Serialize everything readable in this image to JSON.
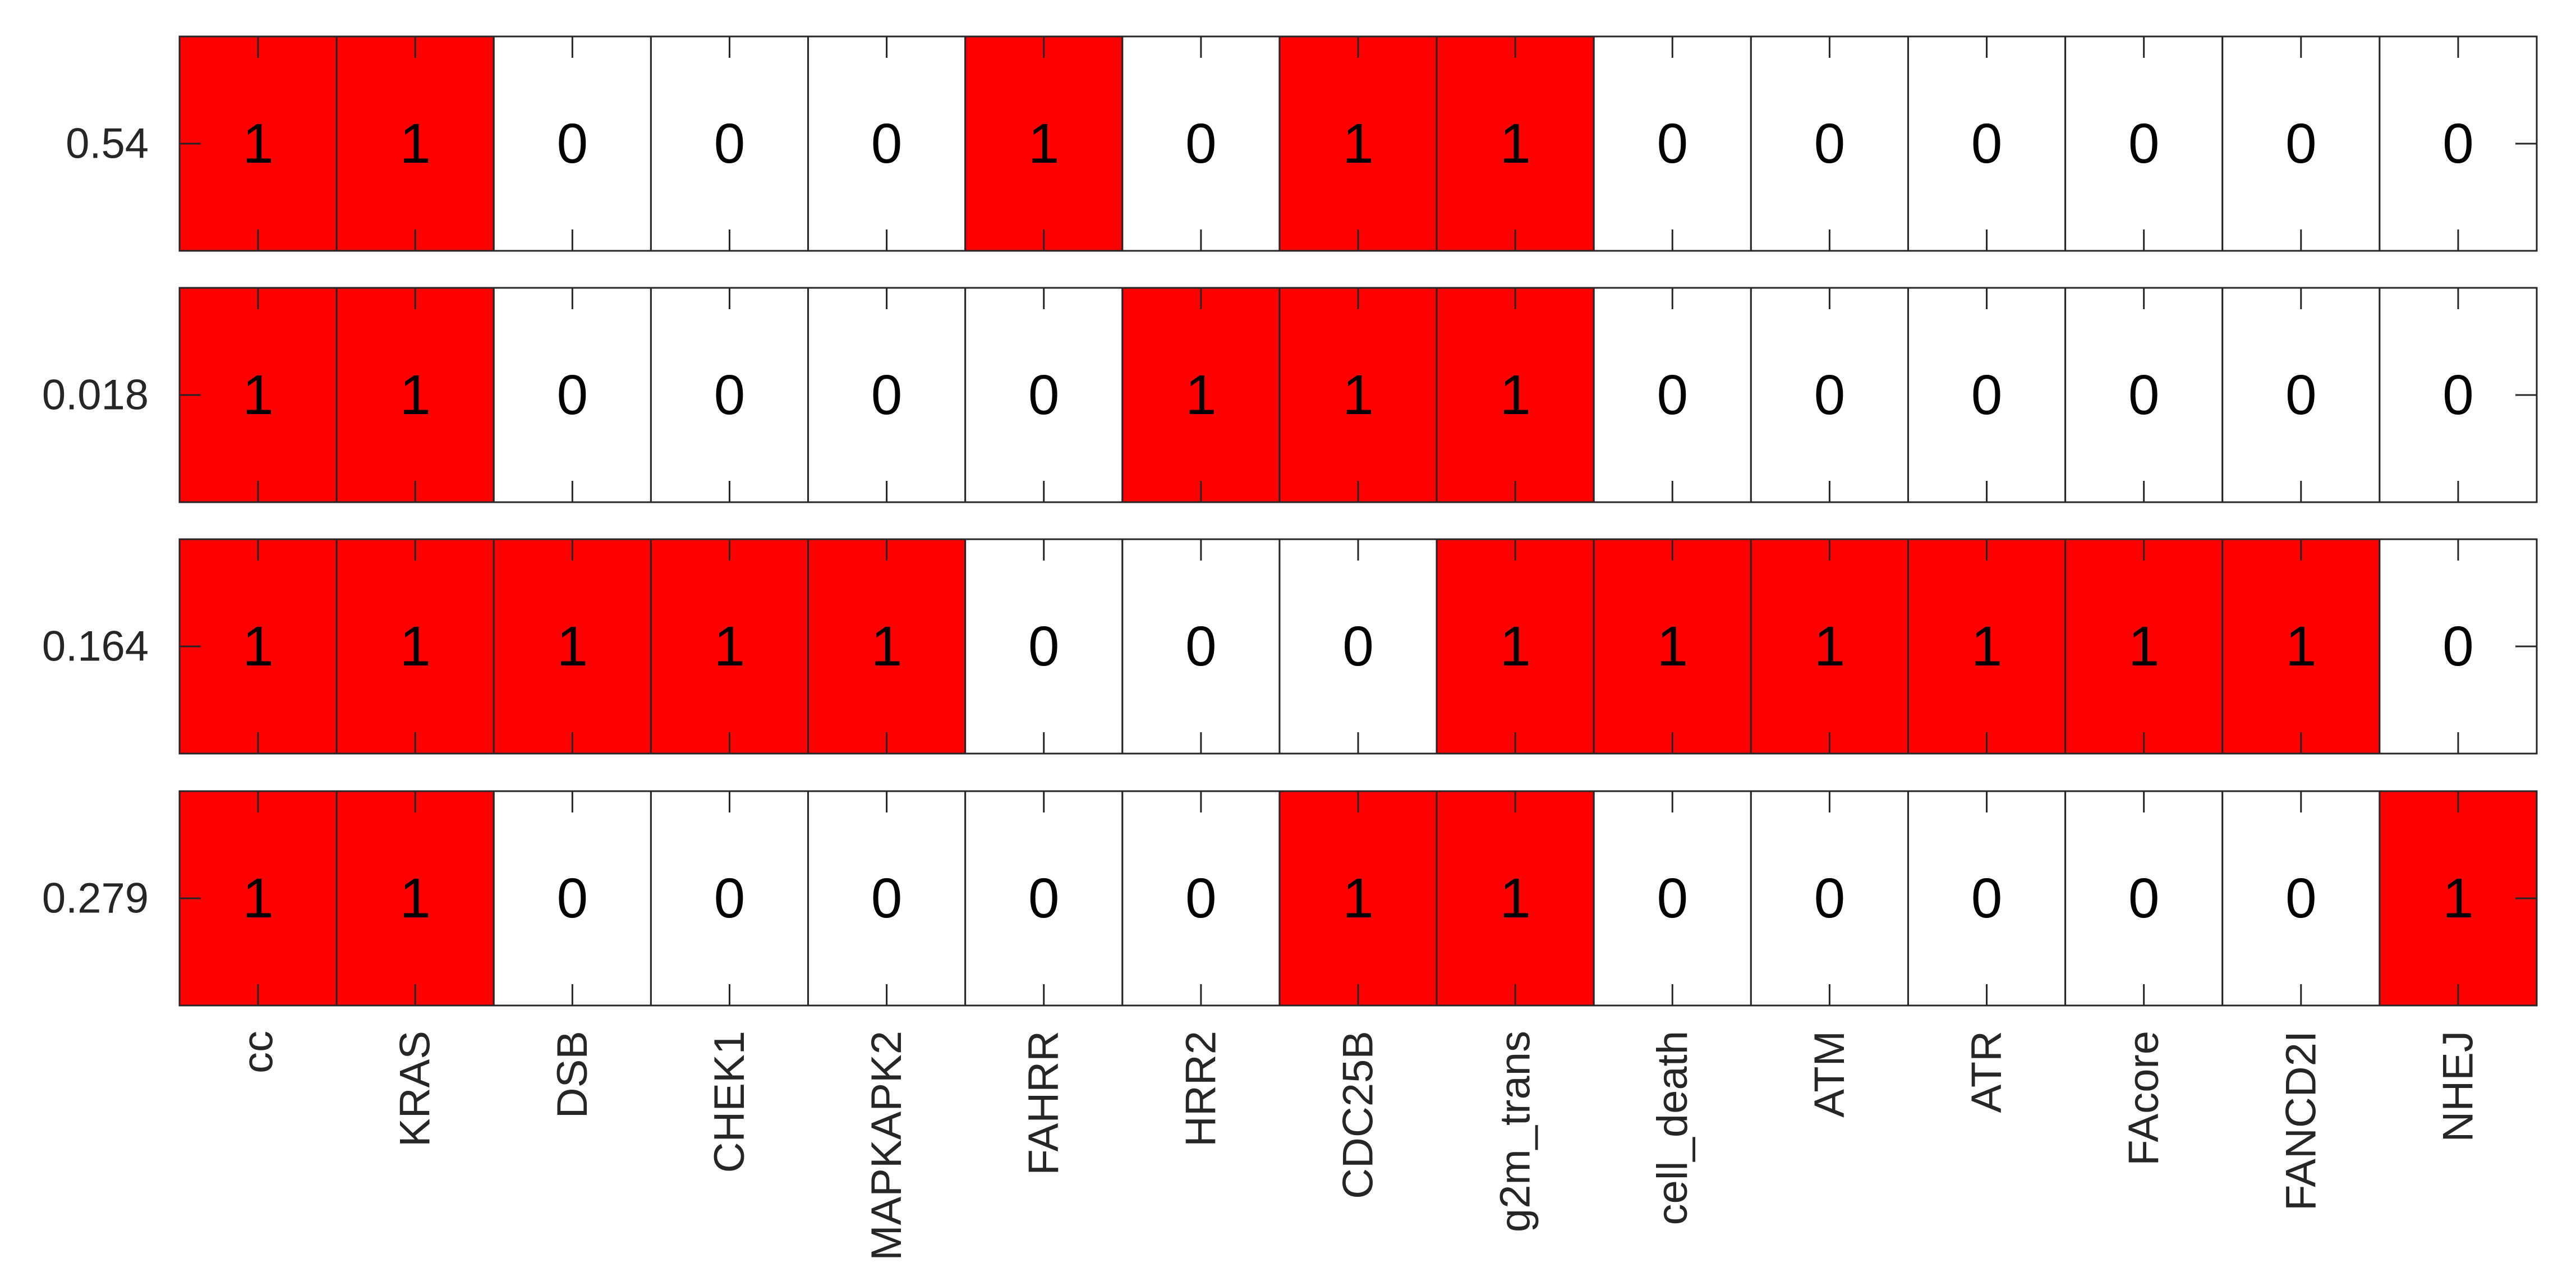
{
  "chart_data": {
    "type": "heatmap",
    "title": "",
    "xlabel": "",
    "ylabel": "",
    "grid": false,
    "categories": [
      "cc",
      "KRAS",
      "DSB",
      "CHEK1",
      "MAPKAPK2",
      "FAHRR",
      "HRR2",
      "CDC25B",
      "g2m_trans",
      "cell_death",
      "ATM",
      "ATR",
      "FAcore",
      "FANCD2I",
      "NHEJ"
    ],
    "rows": [
      {
        "label": "0.54",
        "values": [
          1,
          1,
          0,
          0,
          0,
          1,
          0,
          1,
          1,
          0,
          0,
          0,
          0,
          0,
          0
        ]
      },
      {
        "label": "0.018",
        "values": [
          1,
          1,
          0,
          0,
          0,
          0,
          1,
          1,
          1,
          0,
          0,
          0,
          0,
          0,
          0
        ]
      },
      {
        "label": "0.164",
        "values": [
          1,
          1,
          1,
          1,
          1,
          0,
          0,
          0,
          1,
          1,
          1,
          1,
          1,
          1,
          0
        ]
      },
      {
        "label": "0.279",
        "values": [
          1,
          1,
          0,
          0,
          0,
          0,
          0,
          1,
          1,
          0,
          0,
          0,
          0,
          0,
          1
        ]
      }
    ],
    "colors": {
      "on": "#ff0000",
      "off": "#ffffff",
      "border": "#262626",
      "text": "#000000"
    }
  }
}
